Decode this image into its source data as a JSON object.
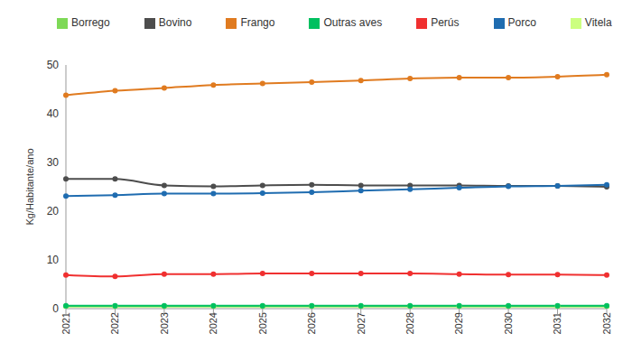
{
  "chart_data": {
    "type": "line",
    "y_label": "Kg/Habitante/ano",
    "categories": [
      "2021",
      "2022",
      "2023",
      "2024",
      "2025",
      "2026",
      "2027",
      "2028",
      "2029",
      "2030",
      "2031",
      "2032"
    ],
    "series": [
      {
        "name": "Bovino",
        "color": "#4d4d4d",
        "values": [
          26.6,
          26.6,
          25.3,
          25.1,
          25.3,
          25.4,
          25.3,
          25.3,
          25.3,
          25.2,
          25.2,
          25.0
        ]
      },
      {
        "name": "Vitela",
        "color": "#ccff80",
        "values": [
          0.4,
          0.4,
          0.4,
          0.4,
          0.4,
          0.4,
          0.4,
          0.4,
          0.4,
          0.4,
          0.4,
          0.4
        ]
      },
      {
        "name": "Porco",
        "color": "#1f6cb0",
        "values": [
          23.1,
          23.3,
          23.6,
          23.6,
          23.7,
          23.9,
          24.2,
          24.5,
          24.8,
          25.1,
          25.2,
          25.4
        ]
      },
      {
        "name": "Borrego",
        "color": "#7ed957",
        "values": [
          0.5,
          0.5,
          0.5,
          0.5,
          0.5,
          0.5,
          0.5,
          0.5,
          0.5,
          0.5,
          0.5,
          0.5
        ]
      },
      {
        "name": "Frango",
        "color": "#e07b20",
        "values": [
          43.8,
          44.7,
          45.3,
          45.9,
          46.2,
          46.5,
          46.8,
          47.2,
          47.4,
          47.4,
          47.6,
          48.0
        ]
      },
      {
        "name": "Outras aves",
        "color": "#00c060",
        "values": [
          0.6,
          0.6,
          0.6,
          0.6,
          0.6,
          0.6,
          0.6,
          0.6,
          0.6,
          0.6,
          0.6,
          0.6
        ]
      },
      {
        "name": "Perús",
        "color": "#f03030",
        "values": [
          6.9,
          6.6,
          7.1,
          7.1,
          7.2,
          7.2,
          7.2,
          7.2,
          7.1,
          7.0,
          7.0,
          6.9
        ]
      }
    ],
    "ylim": [
      0,
      50
    ],
    "yticks": [
      0,
      10,
      20,
      30,
      40,
      50
    ],
    "grid": false,
    "legend": "top",
    "marker": "circle"
  }
}
